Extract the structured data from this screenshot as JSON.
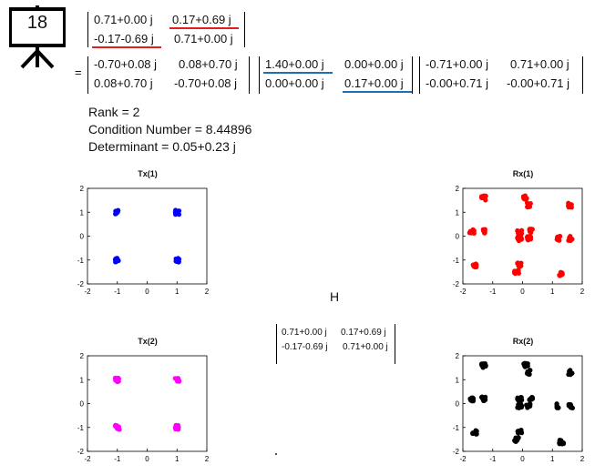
{
  "slide_number": "18",
  "colors": {
    "highlight_red": "#e02020",
    "highlight_blue": "#1f6fb4",
    "tx1": "#0000ff",
    "rx1": "#ff0000",
    "tx2": "#ff00ff",
    "rx2": "#000000"
  },
  "matrix_H": {
    "r1c1": "0.71+0.00 j",
    "r1c2": "0.17+0.69 j",
    "r2c1": "-0.17-0.69 j",
    "r2c2": "0.71+0.00 j"
  },
  "equals": "=",
  "svd": {
    "U": {
      "r1c1": "-0.70+0.08 j",
      "r1c2": "0.08+0.70 j",
      "r2c1": "0.08+0.70 j",
      "r2c2": "-0.70+0.08 j"
    },
    "S": {
      "r1c1": "1.40+0.00 j",
      "r1c2": "0.00+0.00 j",
      "r2c1": "0.00+0.00 j",
      "r2c2": "0.17+0.00 j"
    },
    "V": {
      "r1c1": "-0.71+0.00 j",
      "r1c2": "0.71+0.00 j",
      "r2c1": "-0.00+0.71 j",
      "r2c2": "-0.00+0.71 j"
    }
  },
  "stats": {
    "rank": "Rank = 2",
    "condition": "Condition Number = 8.44896",
    "determinant": "Determinant = 0.05+0.23 j"
  },
  "center_label": "H",
  "center_matrix": {
    "r1c1": "0.71+0.00 j",
    "r1c2": "0.17+0.69 j",
    "r2c1": "-0.17-0.69 j",
    "r2c2": "0.71+0.00 j"
  },
  "chart_data": [
    {
      "type": "scatter",
      "title": "Tx(1)",
      "color": "#0000ff",
      "xlim": [
        -2,
        2
      ],
      "ylim": [
        -2,
        2
      ],
      "xticks": [
        "-2",
        "-1",
        "0",
        "1",
        "2"
      ],
      "yticks": [
        "2",
        "1",
        "0",
        "-1",
        "-2"
      ],
      "points": [
        [
          -1,
          1
        ],
        [
          1,
          1
        ],
        [
          -1,
          -1
        ],
        [
          1,
          -1
        ]
      ]
    },
    {
      "type": "scatter",
      "title": "Rx(1)",
      "color": "#ff0000",
      "xlim": [
        -2,
        2
      ],
      "ylim": [
        -2,
        2
      ],
      "xticks": [
        "-2",
        "-1",
        "0",
        "1",
        "2"
      ],
      "yticks": [
        "2",
        "1",
        "0",
        "-1",
        "-2"
      ],
      "points": [
        [
          -1.3,
          1.6
        ],
        [
          0.1,
          1.6
        ],
        [
          0.2,
          1.3
        ],
        [
          1.6,
          1.3
        ],
        [
          -1.7,
          0.2
        ],
        [
          -1.3,
          0.2
        ],
        [
          -0.1,
          0.2
        ],
        [
          0.3,
          0.2
        ],
        [
          -0.1,
          -0.1
        ],
        [
          0.2,
          -0.1
        ],
        [
          1.2,
          -0.1
        ],
        [
          1.6,
          -0.1
        ],
        [
          -1.6,
          -1.2
        ],
        [
          -0.1,
          -1.2
        ],
        [
          -0.2,
          -1.5
        ],
        [
          1.3,
          -1.6
        ]
      ]
    },
    {
      "type": "scatter",
      "title": "Tx(2)",
      "color": "#ff00ff",
      "xlim": [
        -2,
        2
      ],
      "ylim": [
        -2,
        2
      ],
      "xticks": [
        "-2",
        "-1",
        "0",
        "1",
        "2"
      ],
      "yticks": [
        "2",
        "1",
        "0",
        "-1",
        "-2"
      ],
      "points": [
        [
          -1,
          1
        ],
        [
          1,
          1
        ],
        [
          -1,
          -1
        ],
        [
          1,
          -1
        ]
      ]
    },
    {
      "type": "scatter",
      "title": "Rx(2)",
      "color": "#000000",
      "xlim": [
        -2,
        2
      ],
      "ylim": [
        -2,
        2
      ],
      "xticks": [
        "-2",
        "-1",
        "0",
        "1",
        "2"
      ],
      "yticks": [
        "2",
        "1",
        "0",
        "-1",
        "-2"
      ],
      "points": [
        [
          -1.3,
          1.6
        ],
        [
          0.1,
          1.6
        ],
        [
          0.2,
          1.3
        ],
        [
          1.6,
          1.3
        ],
        [
          -1.7,
          0.2
        ],
        [
          -1.3,
          0.2
        ],
        [
          -0.1,
          0.2
        ],
        [
          0.3,
          0.2
        ],
        [
          -0.1,
          -0.1
        ],
        [
          0.2,
          -0.1
        ],
        [
          1.2,
          -0.1
        ],
        [
          1.6,
          -0.1
        ],
        [
          -1.6,
          -1.2
        ],
        [
          -0.1,
          -1.2
        ],
        [
          -0.2,
          -1.5
        ],
        [
          1.3,
          -1.6
        ]
      ]
    }
  ]
}
